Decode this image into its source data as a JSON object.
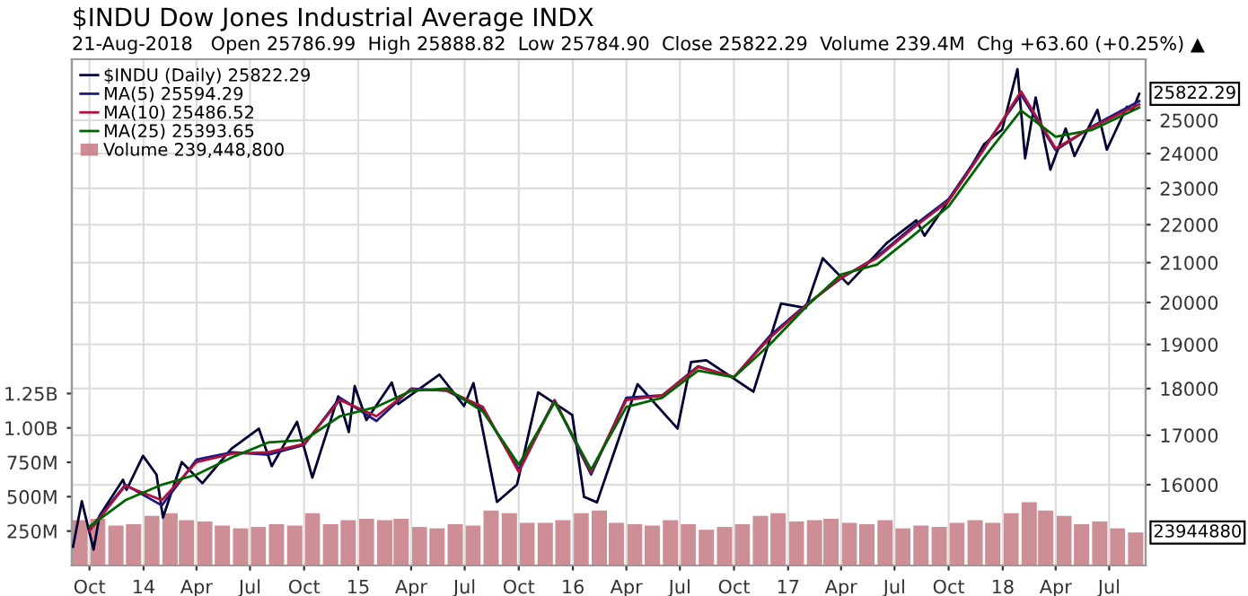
{
  "chart_data": {
    "type": "line",
    "title": "$INDU Dow Jones Industrial Average INDX",
    "subtitle": "21-Aug-2018   Open 25786.99  High 25888.82  Low 25784.90  Close 25822.29  Volume 239.4M  Chg +63.60 (+0.25%) ▲",
    "series": [
      {
        "name": "$INDU (Daily) 25822.29",
        "axis": "y2",
        "color": "#000033",
        "x": [
          "2013-09-03",
          "2013-09-18",
          "2013-10-08",
          "2013-10-18",
          "2013-11-27",
          "2013-12-03",
          "2013-12-31",
          "2014-01-23",
          "2014-02-03",
          "2014-03-07",
          "2014-04-11",
          "2014-05-30",
          "2014-07-16",
          "2014-08-07",
          "2014-09-19",
          "2014-10-15",
          "2014-11-28",
          "2014-12-16",
          "2014-12-26",
          "2015-01-15",
          "2015-02-27",
          "2015-03-10",
          "2015-05-19",
          "2015-06-30",
          "2015-07-16",
          "2015-08-25",
          "2015-09-28",
          "2015-11-03",
          "2015-12-31",
          "2016-01-20",
          "2016-02-11",
          "2016-04-20",
          "2016-06-27",
          "2016-07-20",
          "2016-08-15",
          "2016-11-03",
          "2016-12-20",
          "2017-01-31",
          "2017-03-01",
          "2017-04-13",
          "2017-06-19",
          "2017-08-07",
          "2017-08-21",
          "2017-10-31",
          "2017-11-30",
          "2017-12-31",
          "2018-01-26",
          "2018-02-08",
          "2018-02-26",
          "2018-03-23",
          "2018-04-18",
          "2018-05-03",
          "2018-06-11",
          "2018-06-27",
          "2018-07-31",
          "2018-08-10",
          "2018-08-21"
        ],
        "values": [
          14830,
          15680,
          14780,
          15400,
          16100,
          15900,
          16577,
          16200,
          15372,
          16450,
          16030,
          16717,
          17138,
          16368,
          17280,
          16142,
          17828,
          17068,
          18053,
          17320,
          18133,
          17662,
          18312,
          17620,
          18120,
          15666,
          16001,
          17918,
          17425,
          15766,
          15660,
          18096,
          17140,
          18595,
          18636,
          17930,
          19974,
          19864,
          21115,
          20453,
          21528,
          22118,
          21704,
          23377,
          24272,
          24719,
          26617,
          23860,
          25709,
          23533,
          24748,
          23930,
          25322,
          24117,
          25415,
          25313,
          25822.29
        ]
      },
      {
        "name": "MA(5) 25594.29",
        "axis": "y2",
        "color": "#1a1a80",
        "x": [
          "2013-10-01",
          "2013-12-01",
          "2014-02-01",
          "2014-04-01",
          "2014-06-01",
          "2014-08-01",
          "2014-10-01",
          "2014-12-01",
          "2015-02-01",
          "2015-04-01",
          "2015-06-01",
          "2015-08-01",
          "2015-10-01",
          "2015-12-01",
          "2016-02-01",
          "2016-04-01",
          "2016-06-01",
          "2016-08-01",
          "2016-10-01",
          "2016-12-01",
          "2017-02-01",
          "2017-04-01",
          "2017-06-01",
          "2017-08-01",
          "2017-10-01",
          "2017-12-01",
          "2018-02-01",
          "2018-04-01",
          "2018-06-01",
          "2018-08-21"
        ],
        "values": [
          15150,
          16000,
          15600,
          16500,
          16650,
          16600,
          16800,
          17800,
          17300,
          18000,
          17950,
          17550,
          16300,
          17750,
          16200,
          17800,
          17850,
          18500,
          18250,
          19200,
          19950,
          20600,
          21150,
          21950,
          22700,
          24200,
          25800,
          24100,
          24800,
          25594.29
        ]
      },
      {
        "name": "MA(10) 25486.52",
        "axis": "y2",
        "color": "#b0103a",
        "x": [
          "2013-10-01",
          "2013-12-01",
          "2014-02-01",
          "2014-04-01",
          "2014-06-01",
          "2014-08-01",
          "2014-10-01",
          "2014-12-01",
          "2015-02-01",
          "2015-04-01",
          "2015-06-01",
          "2015-08-01",
          "2015-10-01",
          "2015-12-01",
          "2016-02-01",
          "2016-04-01",
          "2016-06-01",
          "2016-08-01",
          "2016-10-01",
          "2016-12-01",
          "2017-02-01",
          "2017-04-01",
          "2017-06-01",
          "2017-08-01",
          "2017-10-01",
          "2017-12-01",
          "2018-02-01",
          "2018-04-01",
          "2018-06-01",
          "2018-08-21"
        ],
        "values": [
          15120,
          15980,
          15700,
          16450,
          16620,
          16650,
          16820,
          17750,
          17400,
          17980,
          17960,
          17600,
          16250,
          17740,
          16250,
          17750,
          17850,
          18480,
          18260,
          19150,
          19930,
          20620,
          21120,
          21900,
          22650,
          24150,
          25900,
          24150,
          24780,
          25486.52
        ]
      },
      {
        "name": "MA(25) 25393.65",
        "axis": "y2",
        "color": "#006400",
        "x": [
          "2013-10-01",
          "2013-12-01",
          "2014-02-01",
          "2014-04-01",
          "2014-06-01",
          "2014-08-01",
          "2014-10-01",
          "2014-12-01",
          "2015-02-01",
          "2015-04-01",
          "2015-06-01",
          "2015-08-01",
          "2015-10-01",
          "2015-12-01",
          "2016-02-01",
          "2016-04-01",
          "2016-06-01",
          "2016-08-01",
          "2016-10-01",
          "2016-12-01",
          "2017-02-01",
          "2017-04-01",
          "2017-06-01",
          "2017-08-01",
          "2017-10-01",
          "2017-12-01",
          "2018-02-01",
          "2018-04-01",
          "2018-06-01",
          "2018-08-21"
        ],
        "values": [
          15200,
          15700,
          16000,
          16200,
          16550,
          16850,
          16900,
          17400,
          17600,
          17950,
          18000,
          17500,
          16400,
          17700,
          16300,
          17600,
          17800,
          18400,
          18250,
          19000,
          19900,
          20700,
          20950,
          21700,
          22500,
          23900,
          25300,
          24500,
          24700,
          25393.65
        ]
      },
      {
        "name": "Volume 239,448,800",
        "type": "bar",
        "axis": "y",
        "color": "#c47a84",
        "x": [
          "2013-09-15",
          "2013-10-15",
          "2013-11-15",
          "2013-12-15",
          "2014-01-15",
          "2014-02-15",
          "2014-03-15",
          "2014-04-15",
          "2014-05-15",
          "2014-06-15",
          "2014-07-15",
          "2014-08-15",
          "2014-09-15",
          "2014-10-15",
          "2014-11-15",
          "2014-12-15",
          "2015-01-15",
          "2015-02-15",
          "2015-03-15",
          "2015-04-15",
          "2015-05-15",
          "2015-06-15",
          "2015-07-15",
          "2015-08-15",
          "2015-09-15",
          "2015-10-15",
          "2015-11-15",
          "2015-12-15",
          "2016-01-15",
          "2016-02-15",
          "2016-03-15",
          "2016-04-15",
          "2016-05-15",
          "2016-06-15",
          "2016-07-15",
          "2016-08-15",
          "2016-09-15",
          "2016-10-15",
          "2016-11-15",
          "2016-12-15",
          "2017-01-15",
          "2017-02-15",
          "2017-03-15",
          "2017-04-15",
          "2017-05-15",
          "2017-06-15",
          "2017-07-15",
          "2017-08-15",
          "2017-09-15",
          "2017-10-15",
          "2017-11-15",
          "2017-12-15",
          "2018-01-15",
          "2018-02-15",
          "2018-03-15",
          "2018-04-15",
          "2018-05-15",
          "2018-06-15",
          "2018-07-15",
          "2018-08-15"
        ],
        "values": [
          330000000,
          340000000,
          290000000,
          300000000,
          360000000,
          380000000,
          330000000,
          320000000,
          290000000,
          270000000,
          280000000,
          300000000,
          290000000,
          380000000,
          300000000,
          330000000,
          340000000,
          330000000,
          340000000,
          280000000,
          270000000,
          300000000,
          290000000,
          400000000,
          380000000,
          310000000,
          310000000,
          330000000,
          380000000,
          400000000,
          310000000,
          300000000,
          290000000,
          330000000,
          300000000,
          260000000,
          280000000,
          300000000,
          360000000,
          380000000,
          320000000,
          330000000,
          340000000,
          310000000,
          300000000,
          330000000,
          270000000,
          290000000,
          280000000,
          310000000,
          330000000,
          310000000,
          380000000,
          460000000,
          400000000,
          360000000,
          300000000,
          320000000,
          270000000,
          240000000
        ]
      }
    ],
    "xlim": [
      "2013-09-01",
      "2018-09-01"
    ],
    "xticks": [
      {
        "value": "2013-10-01",
        "label": "Oct"
      },
      {
        "value": "2014-01-01",
        "label": "14"
      },
      {
        "value": "2014-04-01",
        "label": "Apr"
      },
      {
        "value": "2014-07-01",
        "label": "Jul"
      },
      {
        "value": "2014-10-01",
        "label": "Oct"
      },
      {
        "value": "2015-01-01",
        "label": "15"
      },
      {
        "value": "2015-04-01",
        "label": "Apr"
      },
      {
        "value": "2015-07-01",
        "label": "Jul"
      },
      {
        "value": "2015-10-01",
        "label": "Oct"
      },
      {
        "value": "2016-01-01",
        "label": "16"
      },
      {
        "value": "2016-04-01",
        "label": "Apr"
      },
      {
        "value": "2016-07-01",
        "label": "Jul"
      },
      {
        "value": "2016-10-01",
        "label": "Oct"
      },
      {
        "value": "2017-01-01",
        "label": "17"
      },
      {
        "value": "2017-04-01",
        "label": "Apr"
      },
      {
        "value": "2017-07-01",
        "label": "Jul"
      },
      {
        "value": "2017-10-01",
        "label": "Oct"
      },
      {
        "value": "2018-01-01",
        "label": "18"
      },
      {
        "value": "2018-04-01",
        "label": "Apr"
      },
      {
        "value": "2018-07-01",
        "label": "Jul"
      }
    ],
    "ylim": [
      0,
      3680000000
    ],
    "yticks": [
      {
        "value": 250000000,
        "label": "250M"
      },
      {
        "value": 500000000,
        "label": "500M"
      },
      {
        "value": 750000000,
        "label": "750M"
      },
      {
        "value": 1000000000,
        "label": "1.00B"
      },
      {
        "value": 1250000000,
        "label": "1.25B"
      }
    ],
    "y2lim": [
      14494,
      26940
    ],
    "y2ticks": [
      16000,
      17000,
      18000,
      19000,
      20000,
      21000,
      22000,
      23000,
      24000,
      25000
    ],
    "log": "y2",
    "grid": true,
    "legend": "top left",
    "annotations": [
      "25822.29",
      "23944880"
    ]
  }
}
